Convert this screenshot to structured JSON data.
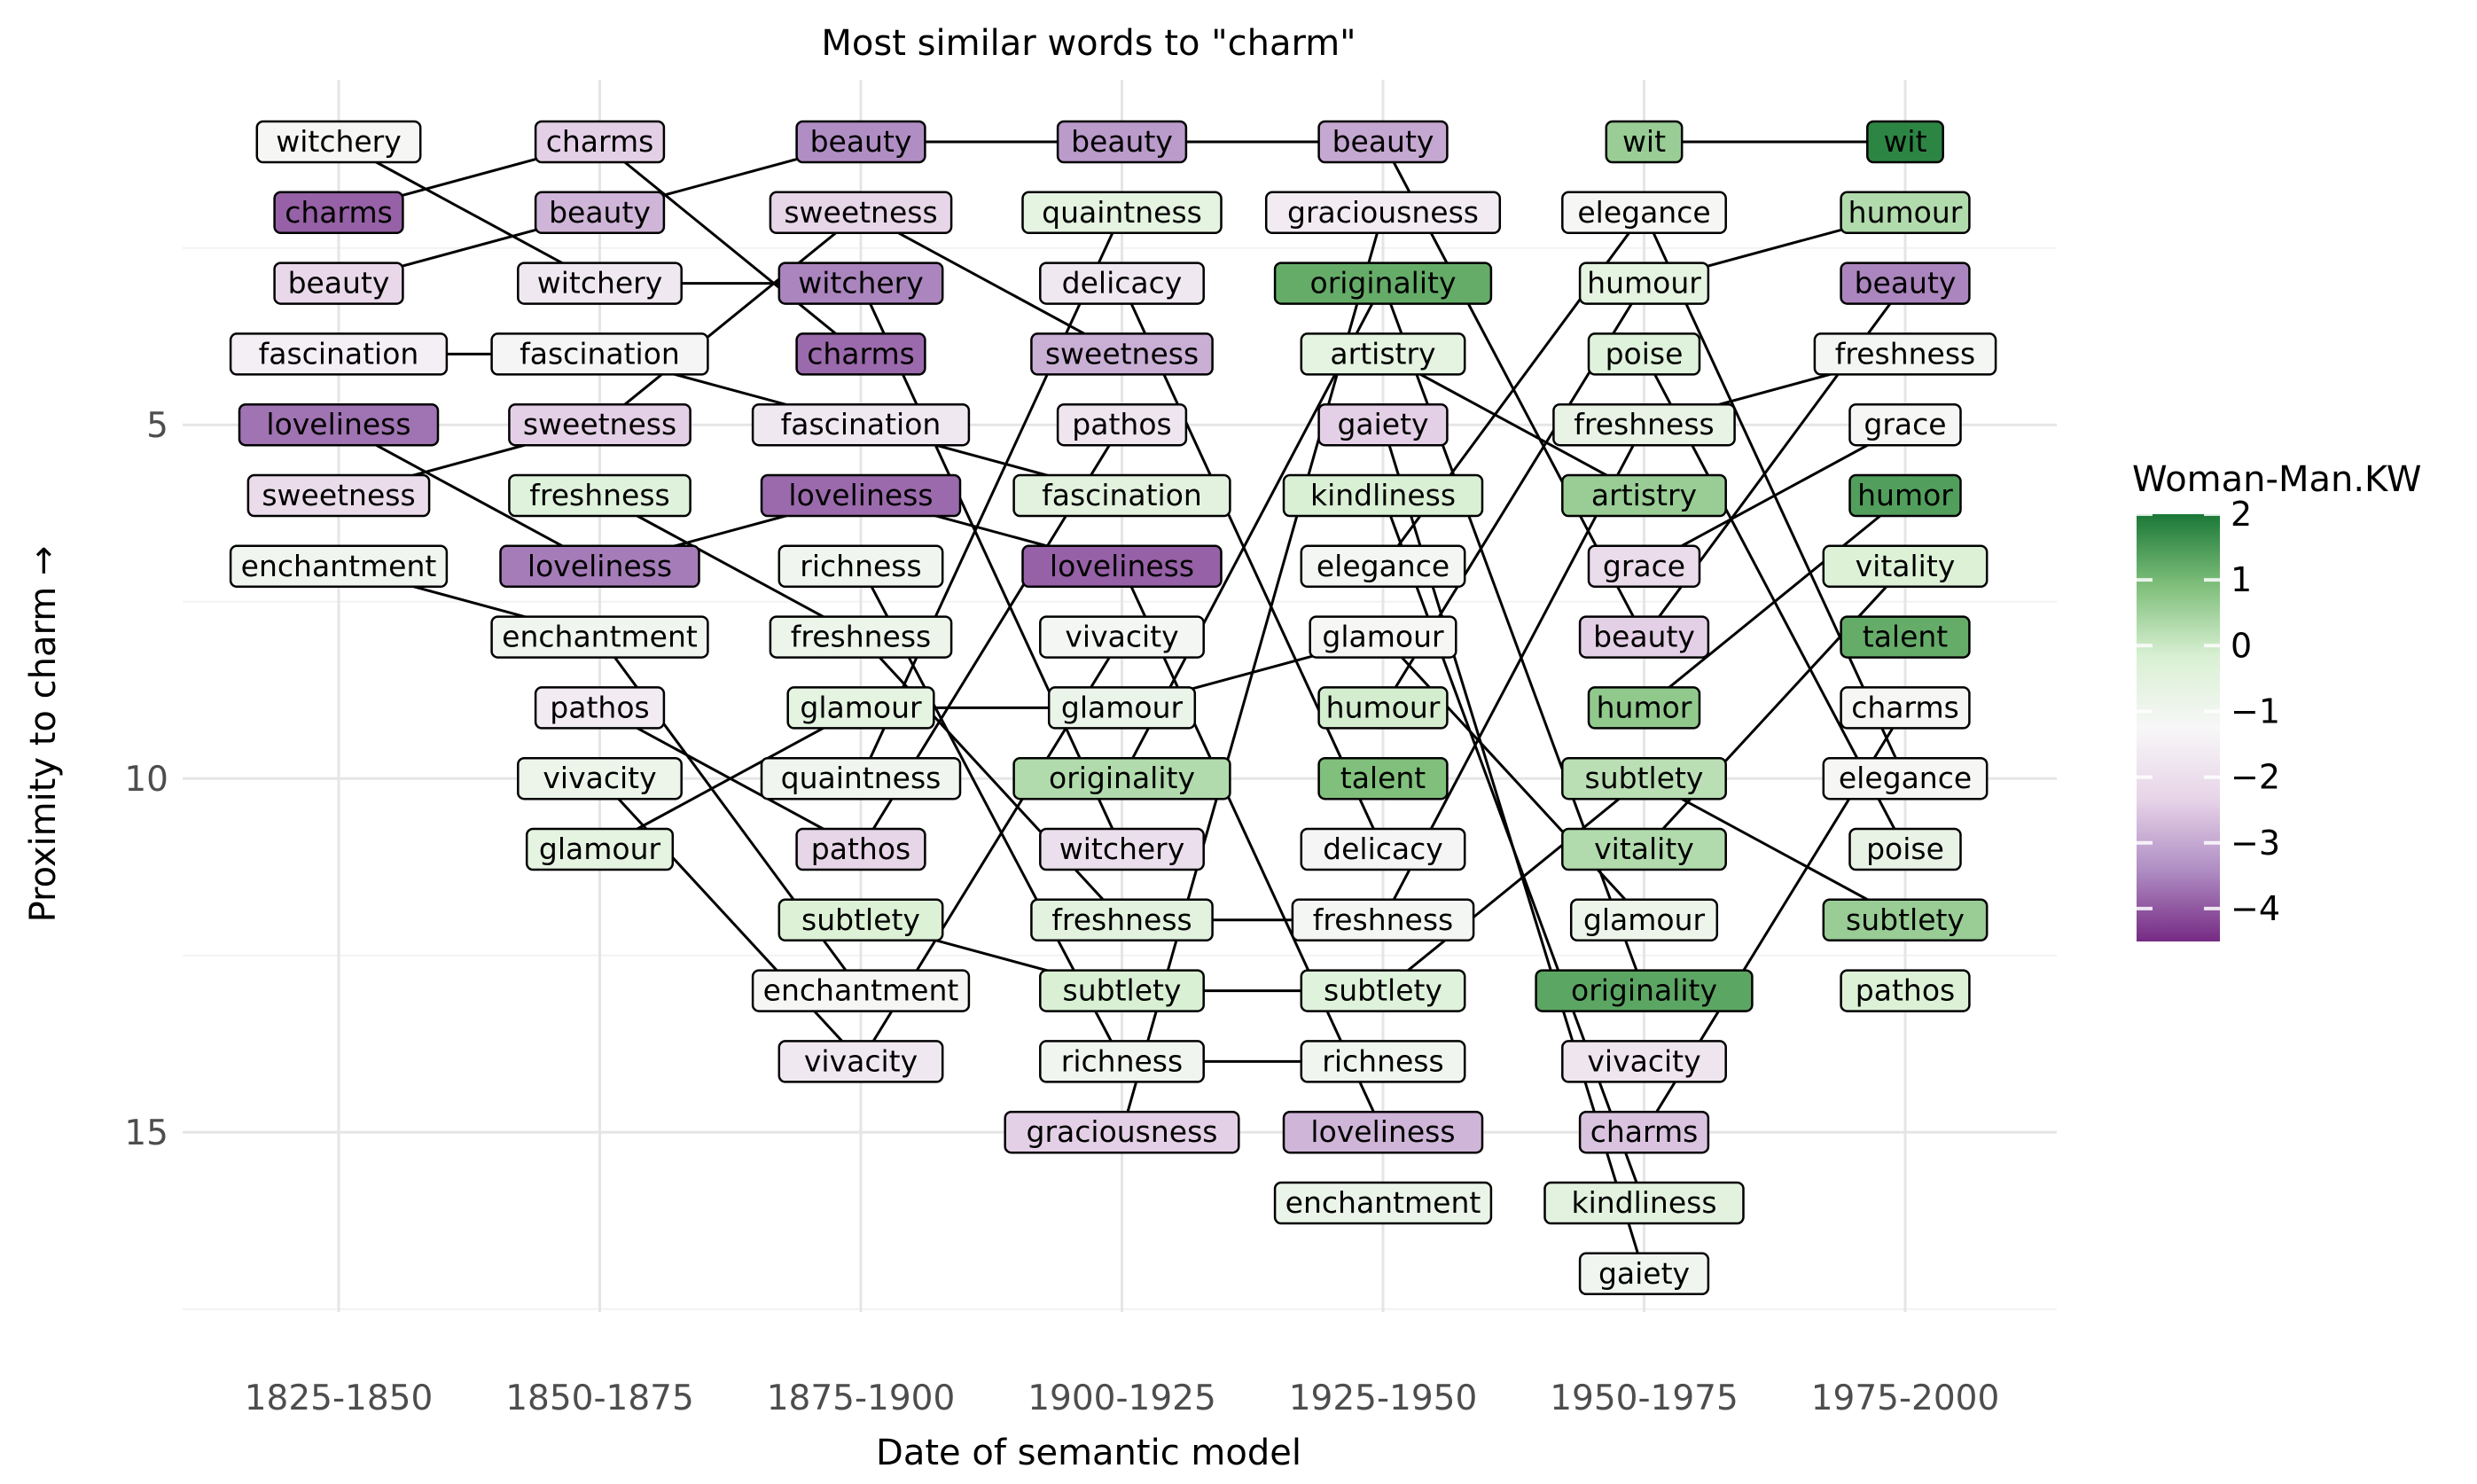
{
  "chart_data": {
    "type": "bump",
    "title": "Most similar words to \"charm\"",
    "xlabel": "Date of semantic model",
    "ylabel": "Proximity to charm →",
    "categories": [
      "1825-1850",
      "1850-1875",
      "1875-1900",
      "1900-1925",
      "1925-1950",
      "1950-1975",
      "1975-2000"
    ],
    "y_ticks": [
      5,
      10,
      15
    ],
    "ylim": [
      0,
      17
    ],
    "y_reversed": true,
    "legend": {
      "title": "Woman-Man.KW",
      "ticks": [
        2,
        1,
        0,
        -1,
        -2,
        -3,
        -4
      ],
      "range": [
        -4.5,
        2
      ],
      "placement": "right",
      "colors": [
        "#762a83",
        "#af8dc3",
        "#e7d4e8",
        "#f7f7f7",
        "#d9f0d3",
        "#7fbf7b",
        "#1b7837"
      ]
    },
    "columns": [
      {
        "period": "1825-1850",
        "words": [
          {
            "word": "witchery",
            "rank": 1,
            "kw": -1.2
          },
          {
            "word": "charms",
            "rank": 2,
            "kw": -3.9
          },
          {
            "word": "beauty",
            "rank": 3,
            "kw": -2.2
          },
          {
            "word": "fascination",
            "rank": 4,
            "kw": -1.5
          },
          {
            "word": "loveliness",
            "rank": 5,
            "kw": -3.7
          },
          {
            "word": "sweetness",
            "rank": 6,
            "kw": -2.1
          },
          {
            "word": "enchantment",
            "rank": 7,
            "kw": -1.0
          }
        ]
      },
      {
        "period": "1850-1875",
        "words": [
          {
            "word": "charms",
            "rank": 1,
            "kw": -2.4
          },
          {
            "word": "beauty",
            "rank": 2,
            "kw": -2.8
          },
          {
            "word": "witchery",
            "rank": 3,
            "kw": -1.7
          },
          {
            "word": "fascination",
            "rank": 4,
            "kw": -1.3
          },
          {
            "word": "sweetness",
            "rank": 5,
            "kw": -2.4
          },
          {
            "word": "freshness",
            "rank": 6,
            "kw": -0.4
          },
          {
            "word": "loveliness",
            "rank": 7,
            "kw": -3.6
          },
          {
            "word": "enchantment",
            "rank": 8,
            "kw": -1.0
          },
          {
            "word": "pathos",
            "rank": 9,
            "kw": -1.6
          },
          {
            "word": "vivacity",
            "rank": 10,
            "kw": -0.9
          },
          {
            "word": "glamour",
            "rank": 11,
            "kw": -0.6
          }
        ]
      },
      {
        "period": "1875-1900",
        "words": [
          {
            "word": "beauty",
            "rank": 1,
            "kw": -3.4
          },
          {
            "word": "sweetness",
            "rank": 2,
            "kw": -2.3
          },
          {
            "word": "witchery",
            "rank": 3,
            "kw": -3.5
          },
          {
            "word": "charms",
            "rank": 4,
            "kw": -3.8
          },
          {
            "word": "fascination",
            "rank": 5,
            "kw": -1.7
          },
          {
            "word": "loveliness",
            "rank": 6,
            "kw": -3.8
          },
          {
            "word": "richness",
            "rank": 7,
            "kw": -1.0
          },
          {
            "word": "freshness",
            "rank": 8,
            "kw": -0.9
          },
          {
            "word": "glamour",
            "rank": 9,
            "kw": -0.6
          },
          {
            "word": "quaintness",
            "rank": 10,
            "kw": -1.0
          },
          {
            "word": "pathos",
            "rank": 11,
            "kw": -2.3
          },
          {
            "word": "subtlety",
            "rank": 12,
            "kw": -0.3
          },
          {
            "word": "enchantment",
            "rank": 13,
            "kw": -1.2
          },
          {
            "word": "vivacity",
            "rank": 14,
            "kw": -1.7
          }
        ]
      },
      {
        "period": "1900-1925",
        "words": [
          {
            "word": "beauty",
            "rank": 1,
            "kw": -3.2
          },
          {
            "word": "quaintness",
            "rank": 2,
            "kw": -0.6
          },
          {
            "word": "delicacy",
            "rank": 3,
            "kw": -1.7
          },
          {
            "word": "sweetness",
            "rank": 4,
            "kw": -2.9
          },
          {
            "word": "pathos",
            "rank": 5,
            "kw": -1.8
          },
          {
            "word": "fascination",
            "rank": 6,
            "kw": -0.5
          },
          {
            "word": "loveliness",
            "rank": 7,
            "kw": -3.9
          },
          {
            "word": "vivacity",
            "rank": 8,
            "kw": -1.1
          },
          {
            "word": "glamour",
            "rank": 9,
            "kw": -0.8
          },
          {
            "word": "originality",
            "rank": 10,
            "kw": 0.3
          },
          {
            "word": "witchery",
            "rank": 11,
            "kw": -2.0
          },
          {
            "word": "freshness",
            "rank": 12,
            "kw": -0.5
          },
          {
            "word": "subtlety",
            "rank": 13,
            "kw": -0.2
          },
          {
            "word": "richness",
            "rank": 14,
            "kw": -1.0
          },
          {
            "word": "graciousness",
            "rank": 15,
            "kw": -2.4
          }
        ]
      },
      {
        "period": "1925-1950",
        "words": [
          {
            "word": "beauty",
            "rank": 1,
            "kw": -3.0
          },
          {
            "word": "graciousness",
            "rank": 2,
            "kw": -1.6
          },
          {
            "word": "originality",
            "rank": 3,
            "kw": 1.2
          },
          {
            "word": "artistry",
            "rank": 4,
            "kw": -0.6
          },
          {
            "word": "gaiety",
            "rank": 5,
            "kw": -2.4
          },
          {
            "word": "kindliness",
            "rank": 6,
            "kw": -0.2
          },
          {
            "word": "elegance",
            "rank": 7,
            "kw": -1.1
          },
          {
            "word": "glamour",
            "rank": 8,
            "kw": -1.2
          },
          {
            "word": "humour",
            "rank": 9,
            "kw": -0.1
          },
          {
            "word": "talent",
            "rank": 10,
            "kw": 0.9
          },
          {
            "word": "delicacy",
            "rank": 11,
            "kw": -1.3
          },
          {
            "word": "freshness",
            "rank": 12,
            "kw": -1.1
          },
          {
            "word": "subtlety",
            "rank": 13,
            "kw": -0.4
          },
          {
            "word": "richness",
            "rank": 14,
            "kw": -1.0
          },
          {
            "word": "loveliness",
            "rank": 15,
            "kw": -2.8
          },
          {
            "word": "enchantment",
            "rank": 16,
            "kw": -0.8
          }
        ]
      },
      {
        "period": "1950-1975",
        "words": [
          {
            "word": "wit",
            "rank": 1,
            "kw": 0.6
          },
          {
            "word": "elegance",
            "rank": 2,
            "kw": -1.2
          },
          {
            "word": "humour",
            "rank": 3,
            "kw": -0.6
          },
          {
            "word": "poise",
            "rank": 4,
            "kw": -0.4
          },
          {
            "word": "freshness",
            "rank": 5,
            "kw": -0.7
          },
          {
            "word": "artistry",
            "rank": 6,
            "kw": 0.6
          },
          {
            "word": "grace",
            "rank": 7,
            "kw": -2.1
          },
          {
            "word": "beauty",
            "rank": 8,
            "kw": -2.4
          },
          {
            "word": "humor",
            "rank": 9,
            "kw": 0.7
          },
          {
            "word": "subtlety",
            "rank": 10,
            "kw": 0.2
          },
          {
            "word": "vitality",
            "rank": 11,
            "kw": 0.3
          },
          {
            "word": "glamour",
            "rank": 12,
            "kw": -0.9
          },
          {
            "word": "originality",
            "rank": 13,
            "kw": 1.3
          },
          {
            "word": "vivacity",
            "rank": 14,
            "kw": -1.8
          },
          {
            "word": "charms",
            "rank": 15,
            "kw": -2.6
          },
          {
            "word": "kindliness",
            "rank": 16,
            "kw": -0.5
          },
          {
            "word": "gaiety",
            "rank": 17,
            "kw": -1.0
          }
        ]
      },
      {
        "period": "1975-2000",
        "words": [
          {
            "word": "wit",
            "rank": 1,
            "kw": 1.8
          },
          {
            "word": "humour",
            "rank": 2,
            "kw": 0.3
          },
          {
            "word": "beauty",
            "rank": 3,
            "kw": -3.5
          },
          {
            "word": "freshness",
            "rank": 4,
            "kw": -1.1
          },
          {
            "word": "grace",
            "rank": 5,
            "kw": -1.2
          },
          {
            "word": "humor",
            "rank": 6,
            "kw": 1.4
          },
          {
            "word": "vitality",
            "rank": 7,
            "kw": -0.3
          },
          {
            "word": "talent",
            "rank": 8,
            "kw": 1.2
          },
          {
            "word": "charms",
            "rank": 9,
            "kw": -1.2
          },
          {
            "word": "elegance",
            "rank": 10,
            "kw": -1.2
          },
          {
            "word": "poise",
            "rank": 11,
            "kw": -0.7
          },
          {
            "word": "subtlety",
            "rank": 12,
            "kw": 0.6
          },
          {
            "word": "pathos",
            "rank": 13,
            "kw": -0.3
          }
        ]
      }
    ]
  }
}
